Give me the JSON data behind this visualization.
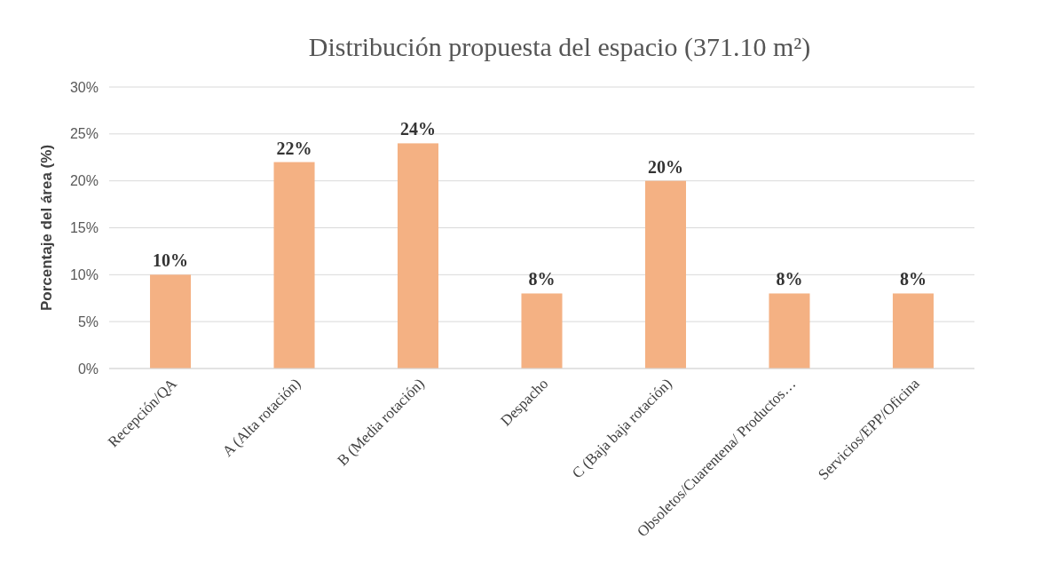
{
  "chart_data": {
    "type": "bar",
    "title": "Distribución propuesta del espacio (371.10 m²)",
    "ylabel": "Porcentaje del área (%)",
    "categories": [
      "Recepción/QA",
      "A (Alta rotación)",
      "B (Media rotación)",
      "Despacho",
      "C (Baja baja rotación)",
      "Obsoletos/Cuarentena/ Productos…",
      "Servicios/EPP/Oficina"
    ],
    "values": [
      10,
      22,
      24,
      8,
      20,
      8,
      8
    ],
    "value_labels": [
      "10%",
      "22%",
      "24%",
      "8%",
      "20%",
      "8%",
      "8%"
    ],
    "color": "#f4b183",
    "ylim": [
      0,
      30
    ],
    "yticks": [
      {
        "value": 0,
        "label": "0%"
      },
      {
        "value": 5,
        "label": "5%"
      },
      {
        "value": 10,
        "label": "10%"
      },
      {
        "value": 15,
        "label": "15%"
      },
      {
        "value": 20,
        "label": "20%"
      },
      {
        "value": 25,
        "label": "25%"
      },
      {
        "value": 30,
        "label": "30%"
      }
    ],
    "grid": "y"
  }
}
